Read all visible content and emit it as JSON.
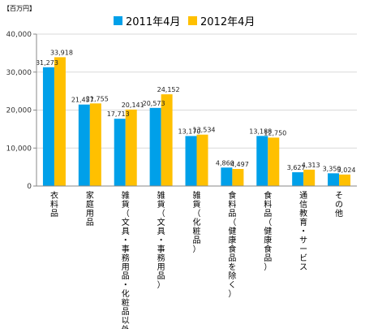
{
  "chart_data": {
    "type": "bar",
    "unit_label": "【百万円】",
    "ylim": [
      0,
      40000
    ],
    "yticks": [
      0,
      10000,
      20000,
      30000,
      40000
    ],
    "ytick_labels": [
      "0",
      "10,000",
      "20,000",
      "30,000",
      "40,000"
    ],
    "grid": true,
    "legend_position": "top",
    "categories": [
      "衣料品",
      "家庭用品",
      "雑貨（文具・事務用品・化粧品以外）",
      "雑貨（文具・事務用品）",
      "雑貨（化粧品）",
      "食料品（健康食品を除く）",
      "食料品（健康食品）",
      "通信教育・サービス",
      "その他"
    ],
    "series": [
      {
        "name": "2011年4月",
        "color": "#00a0e9",
        "values": [
          31273,
          21457,
          17713,
          20573,
          13170,
          4860,
          13188,
          3627,
          3350
        ],
        "labels": [
          "31,273",
          "21,457",
          "17,713",
          "20,573",
          "13,170",
          "4,860",
          "13,188",
          "3,627",
          "3,350"
        ]
      },
      {
        "name": "2012年4月",
        "color": "#ffc000",
        "values": [
          33918,
          21755,
          20141,
          24152,
          13534,
          4497,
          12750,
          4313,
          3024
        ],
        "labels": [
          "33,918",
          "21,755",
          "20,141",
          "24,152",
          "13,534",
          "4,497",
          "12,750",
          "4,313",
          "3,024"
        ]
      }
    ]
  }
}
